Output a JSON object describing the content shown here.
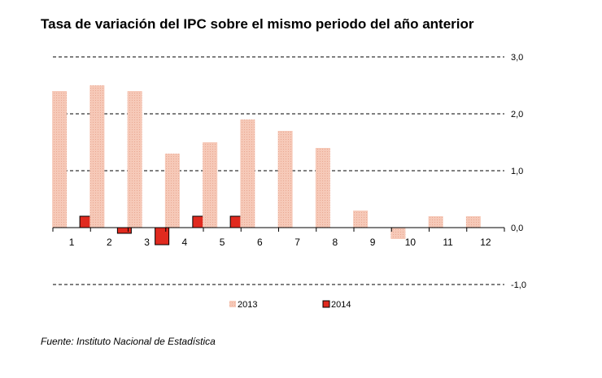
{
  "title": "Tasa de variación del IPC sobre el mismo periodo del año anterior",
  "source": "Fuente: Instituto Nacional de Estadística",
  "colors": {
    "s2013_fill": "#f6c9b8",
    "s2013_dot": "#e9a892",
    "s2014_fill": "#e02a1f",
    "s2014_stroke": "#000000",
    "grid": "#000000"
  },
  "chart_data": {
    "type": "bar",
    "title": "Tasa de variación del IPC sobre el mismo periodo del año anterior",
    "categories": [
      "1",
      "2",
      "3",
      "4",
      "5",
      "6",
      "7",
      "8",
      "9",
      "10",
      "11",
      "12"
    ],
    "series": [
      {
        "name": "2013",
        "values": [
          2.4,
          2.5,
          2.4,
          1.3,
          1.5,
          1.9,
          1.7,
          1.4,
          0.3,
          -0.2,
          0.2,
          0.2
        ]
      },
      {
        "name": "2014",
        "values": [
          0.2,
          -0.1,
          -0.3,
          0.2,
          0.2,
          null,
          null,
          null,
          null,
          null,
          null,
          null
        ]
      }
    ],
    "yticks": [
      "3,0",
      "2,0",
      "1,0",
      "0,0",
      "-1,0"
    ],
    "ytick_values": [
      3,
      2,
      1,
      0,
      -1
    ],
    "ylim": [
      -1,
      3
    ],
    "grid": true,
    "grid_style": "dashed",
    "yaxis_side": "right",
    "legend_position": "bottom"
  }
}
